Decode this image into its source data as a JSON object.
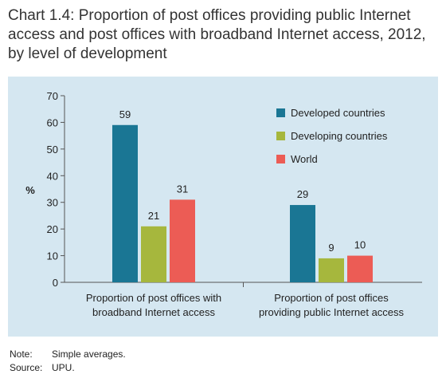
{
  "title": "Chart 1.4: Proportion of post offices providing public Internet access and post offices with broadband Internet access, 2012, by level of development",
  "notes": {
    "note_label": "Note:",
    "note_text": "Simple averages.",
    "source_label": "Source:",
    "source_text": "UPU."
  },
  "colors": {
    "panel_bg": "#d5e7f1",
    "Developed countries": "#1a7694",
    "Developing countries": "#a6b73d",
    "World": "#ec5c55"
  },
  "chart_data": {
    "type": "bar",
    "title": "Chart 1.4: Proportion of post offices providing public Internet access and post offices with broadband Internet access, 2012, by level of development",
    "ylabel": "%",
    "xlabel": "",
    "ylim": [
      0,
      70
    ],
    "yticks": [
      0,
      10,
      20,
      30,
      40,
      50,
      60,
      70
    ],
    "grid": false,
    "legend_position": "top-right",
    "categories": [
      "Proportion of post offices with broadband Internet access",
      "Proportion of post offices providing public Internet access"
    ],
    "category_lines": [
      [
        "Proportion of post offices with",
        "broadband Internet access"
      ],
      [
        "Proportion of post offices",
        "providing public Internet access"
      ]
    ],
    "series": [
      {
        "name": "Developed countries",
        "values": [
          59,
          29
        ]
      },
      {
        "name": "Developing countries",
        "values": [
          21,
          9
        ]
      },
      {
        "name": "World",
        "values": [
          31,
          10
        ]
      }
    ]
  }
}
